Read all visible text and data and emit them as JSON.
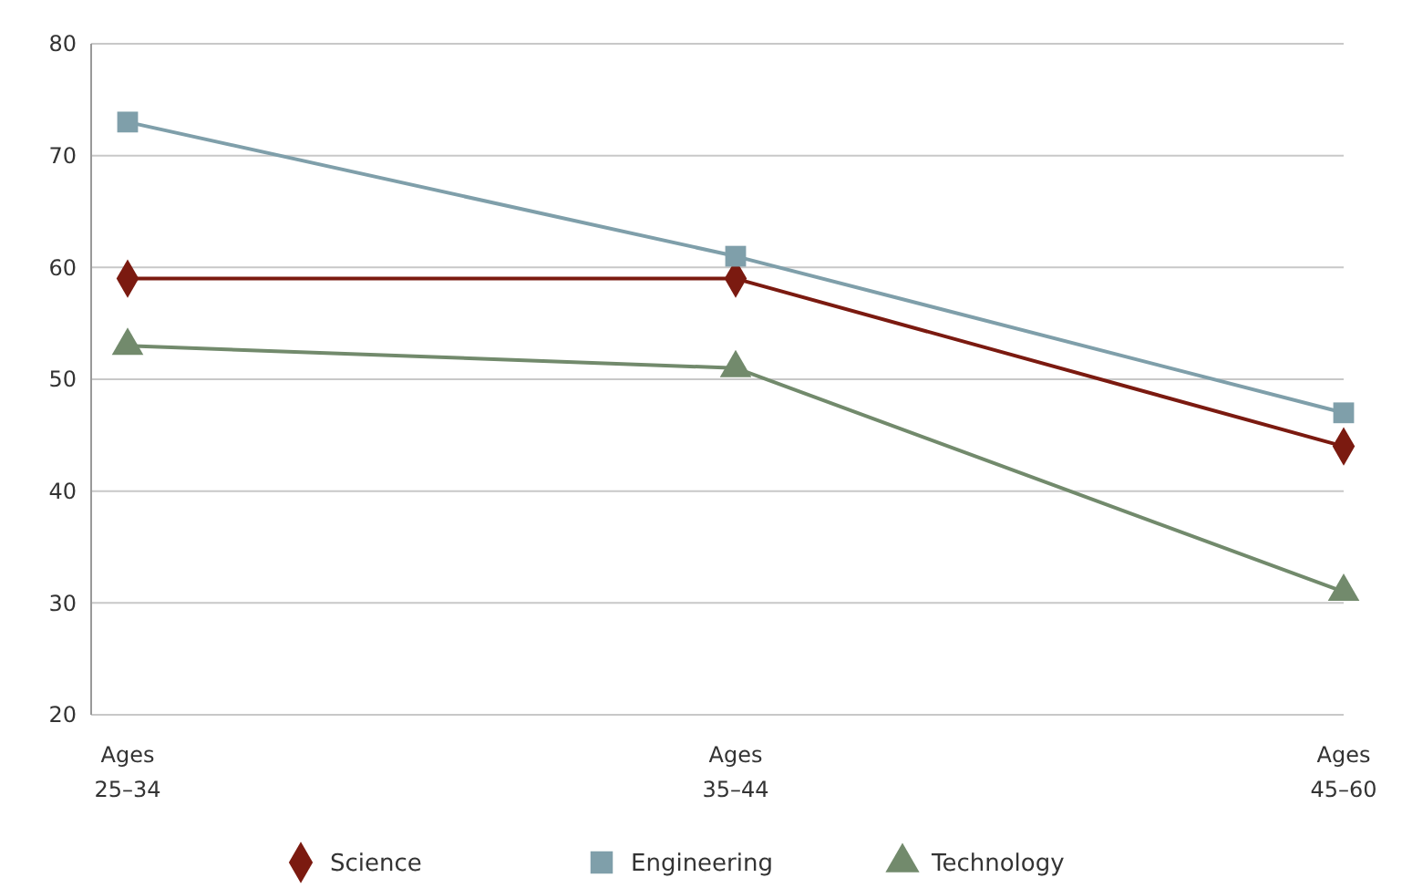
{
  "chart_data": {
    "type": "line",
    "categories": [
      "Ages 25–34",
      "Ages 35–44",
      "Ages 45–60"
    ],
    "series": [
      {
        "name": "Science",
        "color": "#7b1a10",
        "marker": "diamond",
        "values": [
          59,
          59,
          44
        ]
      },
      {
        "name": "Engineering",
        "color": "#7f9faa",
        "marker": "square",
        "values": [
          73,
          61,
          47
        ]
      },
      {
        "name": "Technology",
        "color": "#728a6c",
        "marker": "triangle",
        "values": [
          53,
          51,
          31
        ]
      }
    ],
    "ylim": [
      20,
      80
    ],
    "yticks": [
      20,
      30,
      40,
      50,
      60,
      70,
      80
    ],
    "grid": "y",
    "legend": "bottom"
  }
}
